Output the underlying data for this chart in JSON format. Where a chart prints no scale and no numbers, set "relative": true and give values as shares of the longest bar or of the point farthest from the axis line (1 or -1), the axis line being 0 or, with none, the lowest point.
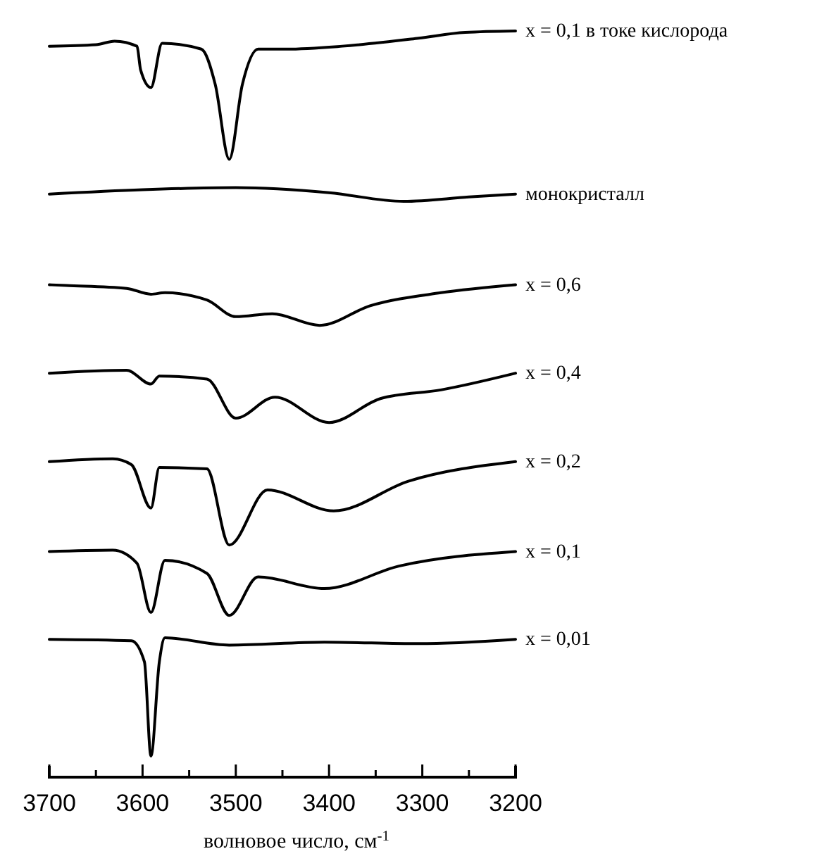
{
  "chart_data": {
    "type": "line",
    "relative": true,
    "xlabel": "волновое число, см$^{-1}$",
    "xlim": [
      3700,
      3200
    ],
    "xticks": [
      3700,
      {
        "value": 3650,
        "label": null
      },
      3600,
      {
        "value": 3550,
        "label": null
      },
      3500,
      {
        "value": 3450,
        "label": null
      },
      3400,
      {
        "value": 3350,
        "label": null
      },
      3300,
      {
        "value": 3250,
        "label": null
      },
      3200
    ],
    "series": [
      {
        "name": "x = 0,1 в токе кислорода",
        "color": "#000000",
        "x": [
          3700,
          3650,
          3630,
          3606,
          3602,
          3591,
          3579,
          3537,
          3522,
          3507,
          3493,
          3476,
          3446,
          3386,
          3304,
          3254,
          3200
        ],
        "values": [
          0.979,
          0.981,
          0.986,
          0.979,
          0.946,
          0.922,
          0.983,
          0.975,
          0.926,
          0.823,
          0.926,
          0.975,
          0.975,
          0.979,
          0.99,
          0.998,
          1.0
        ]
      },
      {
        "name": "монокристалл",
        "color": "#000000",
        "x": [
          3700,
          3600,
          3500,
          3400,
          3320,
          3250,
          3200
        ],
        "values": [
          0.775,
          0.781,
          0.784,
          0.777,
          0.765,
          0.771,
          0.775
        ]
      },
      {
        "name": "x = 0,6",
        "color": "#000000",
        "x": [
          3700,
          3682,
          3617,
          3591,
          3576,
          3531,
          3500,
          3461,
          3410,
          3356,
          3280,
          3200
        ],
        "values": [
          0.65,
          0.649,
          0.645,
          0.637,
          0.639,
          0.629,
          0.606,
          0.61,
          0.594,
          0.621,
          0.639,
          0.65
        ]
      },
      {
        "name": "x = 0,4",
        "color": "#000000",
        "x": [
          3700,
          3617,
          3591,
          3582,
          3531,
          3500,
          3458,
          3400,
          3345,
          3280,
          3200
        ],
        "values": [
          0.528,
          0.532,
          0.513,
          0.524,
          0.52,
          0.466,
          0.495,
          0.46,
          0.493,
          0.505,
          0.528
        ]
      },
      {
        "name": "x = 0,2",
        "color": "#000000",
        "x": [
          3700,
          3632,
          3612,
          3591,
          3582,
          3531,
          3507,
          3466,
          3395,
          3315,
          3200
        ],
        "values": [
          0.406,
          0.41,
          0.402,
          0.342,
          0.398,
          0.396,
          0.291,
          0.367,
          0.338,
          0.379,
          0.406
        ]
      },
      {
        "name": "x = 0,1",
        "color": "#000000",
        "x": [
          3700,
          3632,
          3606,
          3591,
          3576,
          3531,
          3507,
          3476,
          3405,
          3325,
          3200
        ],
        "values": [
          0.282,
          0.284,
          0.266,
          0.198,
          0.27,
          0.252,
          0.194,
          0.247,
          0.231,
          0.262,
          0.282
        ]
      },
      {
        "name": "x = 0,01",
        "color": "#000000",
        "x": [
          3700,
          3612,
          3598,
          3591,
          3582,
          3576,
          3507,
          3405,
          3304,
          3200
        ],
        "values": [
          0.161,
          0.159,
          0.13,
          0,
          0.13,
          0.163,
          0.153,
          0.157,
          0.155,
          0.161
        ]
      }
    ]
  }
}
